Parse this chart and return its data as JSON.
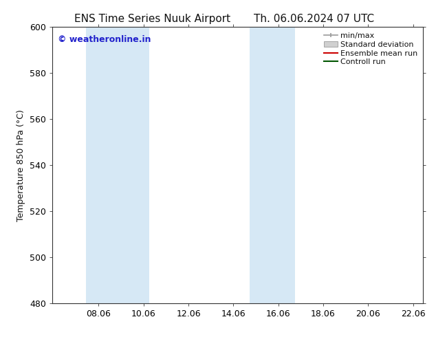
{
  "title_left": "ENS Time Series Nuuk Airport",
  "title_right": "Th. 06.06.2024 07 UTC",
  "ylabel": "Temperature 850 hPa (°C)",
  "ylim": [
    480,
    600
  ],
  "yticks": [
    480,
    500,
    520,
    540,
    560,
    580,
    600
  ],
  "xlim": [
    6.0,
    22.5
  ],
  "xticks": [
    8.06,
    10.06,
    12.06,
    14.06,
    16.06,
    18.06,
    20.06,
    22.06
  ],
  "xticklabels": [
    "08.06",
    "10.06",
    "12.06",
    "14.06",
    "16.06",
    "18.06",
    "20.06",
    "22.06"
  ],
  "watermark": "© weatheronline.in",
  "watermark_color": "#2222cc",
  "bg_color": "#ffffff",
  "plot_bg_color": "#ffffff",
  "shaded_bands": [
    {
      "xmin": 7.5,
      "xmax": 9.0,
      "color": "#d6e8f5"
    },
    {
      "xmin": 9.0,
      "xmax": 10.3,
      "color": "#d6e8f5"
    },
    {
      "xmin": 14.8,
      "xmax": 15.8,
      "color": "#d6e8f5"
    },
    {
      "xmin": 15.8,
      "xmax": 16.8,
      "color": "#d6e8f5"
    }
  ],
  "legend_items": [
    {
      "label": "min/max",
      "color": "#aaaaaa"
    },
    {
      "label": "Standard deviation",
      "color": "#cccccc"
    },
    {
      "label": "Ensemble mean run",
      "color": "#dd0000"
    },
    {
      "label": "Controll run",
      "color": "#006600"
    }
  ],
  "title_fontsize": 11,
  "axis_fontsize": 9,
  "tick_fontsize": 9,
  "legend_fontsize": 8,
  "watermark_fontsize": 9
}
